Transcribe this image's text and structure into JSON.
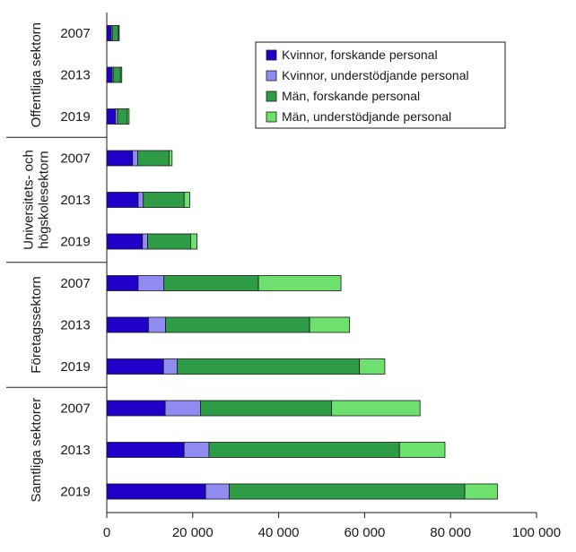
{
  "chart_data": {
    "type": "bar",
    "orientation": "horizontal",
    "stacked": true,
    "title": "",
    "xlabel": "",
    "ylabel": "",
    "xlim": [
      0,
      100000
    ],
    "x_ticks": [
      0,
      20000,
      40000,
      60000,
      80000,
      100000
    ],
    "x_tick_labels": [
      "0",
      "20 000",
      "40 000",
      "60 000",
      "80 000",
      "100 000"
    ],
    "grid": false,
    "legend_position": "top-right",
    "groups": [
      {
        "label": "Offentliga sektorn",
        "years": [
          "2007",
          "2013",
          "2019"
        ]
      },
      {
        "label": "Universitets- och högskolesektorn",
        "years": [
          "2007",
          "2013",
          "2019"
        ]
      },
      {
        "label": "Företagssektorn",
        "years": [
          "2007",
          "2013",
          "2019"
        ]
      },
      {
        "label": "Samtliga sektorer",
        "years": [
          "2007",
          "2013",
          "2019"
        ]
      }
    ],
    "series": [
      {
        "name": "Kvinnor, forskande personal",
        "color": "#1e00c8",
        "values": [
          1000,
          1200,
          2000,
          6000,
          7300,
          8300,
          7300,
          9700,
          13200,
          13600,
          18000,
          23000
        ]
      },
      {
        "name": "Kvinnor, understödjande personal",
        "color": "#8f8bf0",
        "values": [
          300,
          300,
          500,
          1200,
          1200,
          1200,
          6000,
          4000,
          3200,
          8200,
          5800,
          5500
        ]
      },
      {
        "name": "Män, forskande personal",
        "color": "#2e9b47",
        "values": [
          1400,
          1700,
          2300,
          7300,
          9500,
          10000,
          22000,
          33500,
          42400,
          30500,
          44300,
          54800
        ]
      },
      {
        "name": "Män, understödjande personal",
        "color": "#6ee06e",
        "values": [
          200,
          300,
          400,
          700,
          1300,
          1500,
          19200,
          9300,
          5900,
          20600,
          10600,
          7600
        ]
      }
    ]
  }
}
